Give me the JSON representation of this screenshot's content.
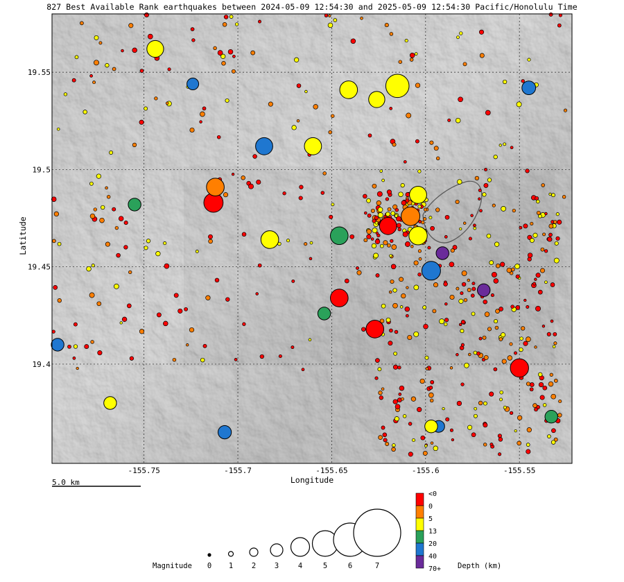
{
  "title": "827 Best Available Rank earthquakes between 2024-05-09 12:54:30 and 2025-05-09 12:54:30 Pacific/Honolulu Time",
  "axes": {
    "xlabel": "Longitude",
    "ylabel": "Latitude",
    "x_ticks": [
      "-155.75",
      "-155.7",
      "-155.65",
      "-155.6",
      "-155.55"
    ],
    "x_tick_values": [
      -155.75,
      -155.7,
      -155.65,
      -155.6,
      -155.55
    ],
    "y_ticks": [
      "19.55",
      "19.5",
      "19.45",
      "19.4"
    ],
    "y_tick_values": [
      19.55,
      19.5,
      19.45,
      19.4
    ],
    "xlim": [
      -155.799,
      -155.522
    ],
    "ylim": [
      19.349,
      19.58
    ]
  },
  "scale_bar": {
    "label": "5.0 km"
  },
  "magnitude_legend": {
    "label": "Magnitude",
    "values": [
      "0",
      "1",
      "2",
      "3",
      "4",
      "5",
      "6",
      "7"
    ]
  },
  "depth_legend": {
    "title": "Depth (km)",
    "labels": [
      "<0",
      "0",
      "5",
      "13",
      "20",
      "40",
      "70+"
    ],
    "colors": [
      "#ff0000",
      "#ff7f00",
      "#ffff00",
      "#2aa15a",
      "#1f77d0",
      "#6a2b9a"
    ]
  },
  "marker_style": {
    "stroke": "#000000",
    "dot_fill": "#ff0000"
  },
  "chart_data": {
    "type": "scatter",
    "points": [
      {
        "x": -155.615,
        "y": 19.543,
        "mag": 4.1,
        "depth": "5-13"
      },
      {
        "x": -155.744,
        "y": 19.562,
        "mag": 2.8,
        "depth": "5-13"
      },
      {
        "x": -155.66,
        "y": 19.512,
        "mag": 2.9,
        "depth": "5-13"
      },
      {
        "x": -155.686,
        "y": 19.512,
        "mag": 2.9,
        "depth": "20-40"
      },
      {
        "x": -155.641,
        "y": 19.541,
        "mag": 3.0,
        "depth": "5-13"
      },
      {
        "x": -155.626,
        "y": 19.536,
        "mag": 2.7,
        "depth": "5-13"
      },
      {
        "x": -155.604,
        "y": 19.487,
        "mag": 2.9,
        "depth": "5-13"
      },
      {
        "x": -155.608,
        "y": 19.476,
        "mag": 3.2,
        "depth": "0-5"
      },
      {
        "x": -155.62,
        "y": 19.471,
        "mag": 2.9,
        "depth": "<0"
      },
      {
        "x": -155.646,
        "y": 19.466,
        "mag": 3.0,
        "depth": "13-20"
      },
      {
        "x": -155.604,
        "y": 19.466,
        "mag": 3.1,
        "depth": "5-13"
      },
      {
        "x": -155.683,
        "y": 19.464,
        "mag": 3.0,
        "depth": "5-13"
      },
      {
        "x": -155.713,
        "y": 19.483,
        "mag": 3.3,
        "depth": "<0"
      },
      {
        "x": -155.712,
        "y": 19.491,
        "mag": 3.0,
        "depth": "0-5"
      },
      {
        "x": -155.597,
        "y": 19.448,
        "mag": 3.2,
        "depth": "20-40"
      },
      {
        "x": -155.646,
        "y": 19.434,
        "mag": 3.0,
        "depth": "<0"
      },
      {
        "x": -155.627,
        "y": 19.418,
        "mag": 3.0,
        "depth": "<0"
      },
      {
        "x": -155.55,
        "y": 19.398,
        "mag": 3.1,
        "depth": "<0"
      },
      {
        "x": -155.591,
        "y": 19.457,
        "mag": 2.0,
        "depth": "40-70"
      },
      {
        "x": -155.569,
        "y": 19.438,
        "mag": 2.0,
        "depth": "40-70"
      },
      {
        "x": -155.796,
        "y": 19.41,
        "mag": 2.0,
        "depth": "20-40"
      },
      {
        "x": -155.707,
        "y": 19.365,
        "mag": 2.1,
        "depth": "20-40"
      },
      {
        "x": -155.545,
        "y": 19.542,
        "mag": 2.2,
        "depth": "20-40"
      },
      {
        "x": -155.755,
        "y": 19.482,
        "mag": 2.0,
        "depth": "13-20"
      },
      {
        "x": -155.654,
        "y": 19.426,
        "mag": 2.0,
        "depth": "13-20"
      },
      {
        "x": -155.593,
        "y": 19.368,
        "mag": 1.8,
        "depth": "20-40"
      },
      {
        "x": -155.724,
        "y": 19.544,
        "mag": 1.8,
        "depth": "20-40"
      },
      {
        "x": -155.768,
        "y": 19.38,
        "mag": 2.0,
        "depth": "5-13"
      },
      {
        "x": -155.533,
        "y": 19.373,
        "mag": 2.0,
        "depth": "13-20"
      },
      {
        "x": -155.597,
        "y": 19.368,
        "mag": 2.0,
        "depth": "5-13"
      }
    ],
    "background_dots": {
      "count_shown": 620,
      "x_range": [
        -155.799,
        -155.522
      ],
      "y_range": [
        19.349,
        19.58
      ],
      "note_colors": [
        "#ff0000",
        "#ff7f00",
        "#ffff00"
      ]
    }
  }
}
